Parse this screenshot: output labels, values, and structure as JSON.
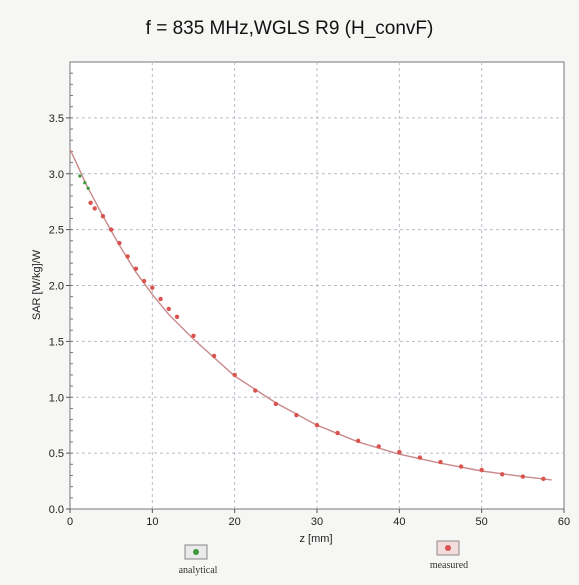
{
  "chart_data": {
    "type": "line",
    "title": "f = 835 MHz,WGLS R9 (H_convF)",
    "xlabel": "z [mm]",
    "ylabel": "SAR [W/kg]/W",
    "xlim": [
      0,
      60
    ],
    "ylim": [
      0,
      4
    ],
    "xticks": [
      0,
      10,
      20,
      30,
      40,
      50,
      60
    ],
    "yticks": [
      0.0,
      0.5,
      1.0,
      1.5,
      2.0,
      2.5,
      3.0,
      3.5
    ],
    "ytick_labels": [
      "0.0",
      "0.5",
      "1.0",
      "1.5",
      "2.0",
      "2.5",
      "3.0",
      "3.5"
    ],
    "grid": true,
    "legend_position": "bottom",
    "series": [
      {
        "name": "analytical",
        "color": "#3a9a3a",
        "style": "line",
        "x": [
          0,
          2,
          4,
          6,
          8,
          10,
          12,
          15,
          20,
          25,
          30,
          35,
          40,
          45,
          50,
          55,
          58.5
        ],
        "y": [
          3.22,
          2.9,
          2.62,
          2.36,
          2.12,
          1.92,
          1.74,
          1.52,
          1.19,
          0.95,
          0.75,
          0.6,
          0.49,
          0.41,
          0.34,
          0.29,
          0.26
        ]
      },
      {
        "name": "measured",
        "color": "#d9534f",
        "style": "markers",
        "x": [
          2.5,
          3,
          4,
          5,
          6,
          7,
          8,
          9,
          10,
          11,
          12,
          13,
          15,
          17.5,
          20,
          22.5,
          25,
          27.5,
          30,
          32.5,
          35,
          37.5,
          40,
          42.5,
          45,
          47.5,
          50,
          52.5,
          55,
          57.5
        ],
        "y": [
          2.74,
          2.69,
          2.62,
          2.5,
          2.38,
          2.26,
          2.15,
          2.04,
          1.98,
          1.88,
          1.79,
          1.72,
          1.55,
          1.37,
          1.2,
          1.06,
          0.94,
          0.84,
          0.75,
          0.68,
          0.61,
          0.56,
          0.51,
          0.46,
          0.42,
          0.38,
          0.35,
          0.31,
          0.29,
          0.27
        ]
      }
    ]
  }
}
